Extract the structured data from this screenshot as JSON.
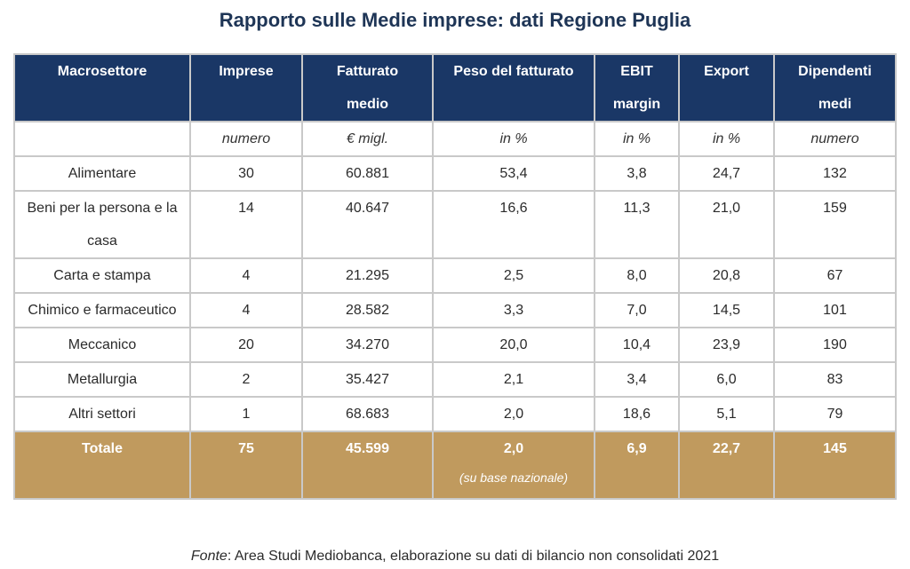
{
  "title": "Rapporto sulle Medie imprese: dati Regione Puglia",
  "headers": [
    {
      "line1": "Macrosettore",
      "line2": ""
    },
    {
      "line1": "Imprese",
      "line2": ""
    },
    {
      "line1": "Fatturato",
      "line2": "medio"
    },
    {
      "line1": "Peso del fatturato",
      "line2": ""
    },
    {
      "line1": "EBIT",
      "line2": "margin"
    },
    {
      "line1": "Export",
      "line2": ""
    },
    {
      "line1": "Dipendenti",
      "line2": "medi"
    }
  ],
  "units": [
    "",
    "numero",
    "€ migl.",
    "in %",
    "in %",
    "in %",
    "numero"
  ],
  "rows": [
    {
      "sector": "Alimentare",
      "imprese": "30",
      "fatturato": "60.881",
      "peso": "53,4",
      "ebit": "3,8",
      "export": "24,7",
      "dipendenti": "132"
    },
    {
      "sector": "Beni per la persona e la casa",
      "imprese": "14",
      "fatturato": "40.647",
      "peso": "16,6",
      "ebit": "11,3",
      "export": "21,0",
      "dipendenti": "159"
    },
    {
      "sector": "Carta e stampa",
      "imprese": "4",
      "fatturato": "21.295",
      "peso": "2,5",
      "ebit": "8,0",
      "export": "20,8",
      "dipendenti": "67"
    },
    {
      "sector": "Chimico e farmaceutico",
      "imprese": "4",
      "fatturato": "28.582",
      "peso": "3,3",
      "ebit": "7,0",
      "export": "14,5",
      "dipendenti": "101"
    },
    {
      "sector": "Meccanico",
      "imprese": "20",
      "fatturato": "34.270",
      "peso": "20,0",
      "ebit": "10,4",
      "export": "23,9",
      "dipendenti": "190"
    },
    {
      "sector": "Metallurgia",
      "imprese": "2",
      "fatturato": "35.427",
      "peso": "2,1",
      "ebit": "3,4",
      "export": "6,0",
      "dipendenti": "83"
    },
    {
      "sector": "Altri settori",
      "imprese": "1",
      "fatturato": "68.683",
      "peso": "2,0",
      "ebit": "18,6",
      "export": "5,1",
      "dipendenti": "79"
    }
  ],
  "total": {
    "sector": "Totale",
    "imprese": "75",
    "fatturato": "45.599",
    "peso": "2,0",
    "peso_note": "(su base nazionale)",
    "ebit": "6,9",
    "export": "22,7",
    "dipendenti": "145"
  },
  "source": {
    "label": "Fonte",
    "text": ": Area Studi Mediobanca, elaborazione su dati di bilancio non consolidati 2021"
  },
  "colors": {
    "header_bg": "#1a3766",
    "total_bg": "#c09a5e",
    "title": "#1e3556"
  }
}
